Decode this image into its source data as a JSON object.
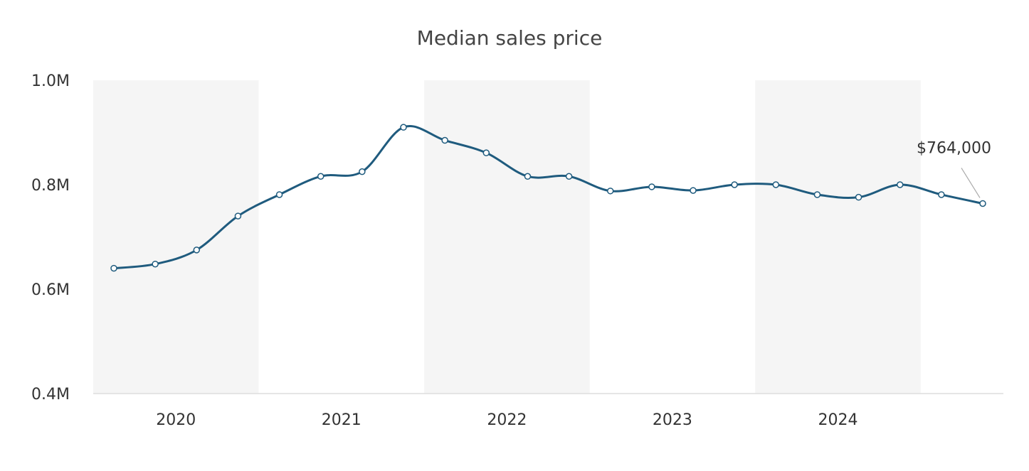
{
  "chart_data": {
    "type": "line",
    "title": "Median sales price",
    "xlabel": "",
    "ylabel": "",
    "ylim": [
      0.4,
      1.0
    ],
    "y_unit": "M",
    "y_ticks": [
      {
        "value": 0.4,
        "label": "0.4M"
      },
      {
        "value": 0.6,
        "label": "0.6M"
      },
      {
        "value": 0.8,
        "label": "0.8M"
      },
      {
        "value": 1.0,
        "label": "1.0M"
      }
    ],
    "x_ticks": [
      {
        "value": 2020,
        "label": "2020"
      },
      {
        "value": 2021,
        "label": "2021"
      },
      {
        "value": 2022,
        "label": "2022"
      },
      {
        "value": 2023,
        "label": "2023"
      },
      {
        "value": 2024,
        "label": "2024"
      }
    ],
    "shaded_years": [
      "2020",
      "2022",
      "2024"
    ],
    "grid": false,
    "series": [
      {
        "color": "#1f5b7e",
        "points": [
          {
            "x": "2020-Q1",
            "y": 0.64
          },
          {
            "x": "2020-Q2",
            "y": 0.648
          },
          {
            "x": "2020-Q3",
            "y": 0.675
          },
          {
            "x": "2020-Q4",
            "y": 0.74
          },
          {
            "x": "2021-Q1",
            "y": 0.781
          },
          {
            "x": "2021-Q2",
            "y": 0.816
          },
          {
            "x": "2021-Q3",
            "y": 0.825
          },
          {
            "x": "2021-Q4",
            "y": 0.91
          },
          {
            "x": "2022-Q1",
            "y": 0.885
          },
          {
            "x": "2022-Q2",
            "y": 0.861
          },
          {
            "x": "2022-Q3",
            "y": 0.816
          },
          {
            "x": "2022-Q4",
            "y": 0.816
          },
          {
            "x": "2023-Q1",
            "y": 0.788
          },
          {
            "x": "2023-Q2",
            "y": 0.796
          },
          {
            "x": "2023-Q3",
            "y": 0.789
          },
          {
            "x": "2023-Q4",
            "y": 0.8
          },
          {
            "x": "2024-Q1",
            "y": 0.8
          },
          {
            "x": "2024-Q2",
            "y": 0.781
          },
          {
            "x": "2024-Q3",
            "y": 0.776
          },
          {
            "x": "2024-Q4",
            "y": 0.8
          },
          {
            "x": "2025-Q1",
            "y": 0.781
          },
          {
            "x": "2025-Q2",
            "y": 0.764
          }
        ]
      }
    ],
    "annotation": {
      "text": "$764,000",
      "point_x": "2025-Q2",
      "point_y": 0.764
    },
    "colors": {
      "line": "#1f5b7e",
      "shade": "#f5f5f5",
      "marker_fill": "#ffffff",
      "axis": "#dddddd",
      "leader": "#aaaaaa"
    }
  }
}
